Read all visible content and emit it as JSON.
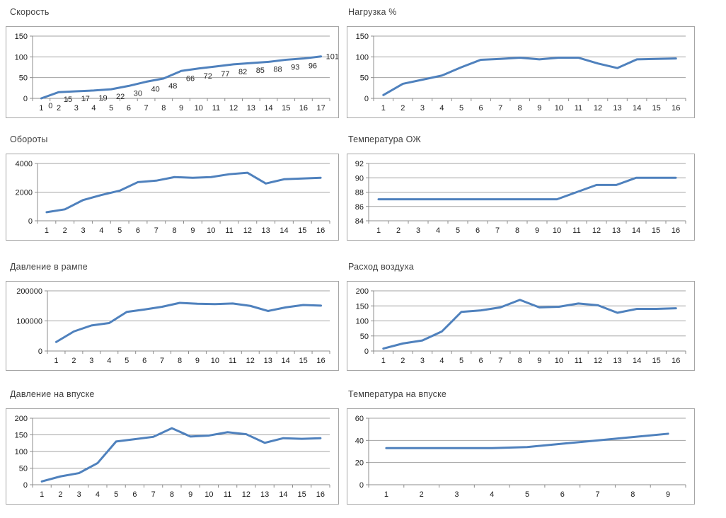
{
  "colors": {
    "line": "#4F81BD",
    "gridline": "#A3A3A3",
    "axis": "#8C8C8C",
    "box_border": "#A6A6A6",
    "title_text": "#3F3F3F",
    "tick_text": "#1A1A1A",
    "background": "#FFFFFF"
  },
  "chart_data": [
    {
      "type": "line",
      "title": "Скорость",
      "x": [
        1,
        2,
        3,
        4,
        5,
        6,
        7,
        8,
        9,
        10,
        11,
        12,
        13,
        14,
        15,
        16,
        17
      ],
      "values": [
        0,
        15,
        17,
        19,
        22,
        30,
        40,
        48,
        66,
        72,
        77,
        82,
        85,
        88,
        93,
        96,
        101
      ],
      "data_labels": true,
      "ylim": [
        0,
        150
      ],
      "yticks": [
        0,
        50,
        100,
        150
      ],
      "grid": true,
      "legend": "none"
    },
    {
      "type": "line",
      "title": "Нагрузка %",
      "x": [
        1,
        2,
        3,
        4,
        5,
        6,
        7,
        8,
        9,
        10,
        11,
        12,
        13,
        14,
        15,
        16
      ],
      "values": [
        8,
        35,
        45,
        55,
        75,
        93,
        95,
        98,
        94,
        98,
        98,
        84,
        73,
        94,
        95,
        96
      ],
      "data_labels": false,
      "ylim": [
        0,
        150
      ],
      "yticks": [
        0,
        50,
        100,
        150
      ],
      "grid": true,
      "legend": "none"
    },
    {
      "type": "line",
      "title": "Обороты",
      "x": [
        1,
        2,
        3,
        4,
        5,
        6,
        7,
        8,
        9,
        10,
        11,
        12,
        13,
        14,
        15,
        16
      ],
      "values": [
        600,
        800,
        1450,
        1800,
        2100,
        2700,
        2800,
        3050,
        3000,
        3050,
        3250,
        3350,
        2600,
        2900,
        2950,
        3000
      ],
      "data_labels": false,
      "ylim": [
        0,
        4000
      ],
      "yticks": [
        0,
        2000,
        4000
      ],
      "grid": true,
      "legend": "none"
    },
    {
      "type": "line",
      "title": "Температура ОЖ",
      "x": [
        1,
        2,
        3,
        4,
        5,
        6,
        7,
        8,
        9,
        10,
        11,
        12,
        13,
        14,
        15,
        16
      ],
      "values": [
        87,
        87,
        87,
        87,
        87,
        87,
        87,
        87,
        87,
        87,
        88,
        89,
        89,
        90,
        90,
        90
      ],
      "data_labels": false,
      "ylim": [
        84,
        92
      ],
      "yticks": [
        84,
        86,
        88,
        90,
        92
      ],
      "grid": true,
      "legend": "none"
    },
    {
      "type": "line",
      "title": "Давление в рампе",
      "x": [
        1,
        2,
        3,
        4,
        5,
        6,
        7,
        8,
        9,
        10,
        11,
        12,
        13,
        14,
        15,
        16
      ],
      "values": [
        30000,
        65000,
        85000,
        93000,
        130000,
        138000,
        147000,
        160000,
        157000,
        156000,
        158000,
        150000,
        133000,
        145000,
        153000,
        151000
      ],
      "data_labels": false,
      "ylim": [
        0,
        200000
      ],
      "yticks": [
        0,
        100000,
        200000
      ],
      "grid": true,
      "legend": "none"
    },
    {
      "type": "line",
      "title": "Расход воздуха",
      "x": [
        1,
        2,
        3,
        4,
        5,
        6,
        7,
        8,
        9,
        10,
        11,
        12,
        13,
        14,
        15,
        16
      ],
      "values": [
        8,
        25,
        35,
        65,
        130,
        135,
        145,
        170,
        145,
        147,
        158,
        152,
        127,
        140,
        140,
        142
      ],
      "data_labels": false,
      "ylim": [
        0,
        200
      ],
      "yticks": [
        0,
        50,
        100,
        150,
        200
      ],
      "grid": true,
      "legend": "none"
    },
    {
      "type": "line",
      "title": "Давление на впуске",
      "x": [
        1,
        2,
        3,
        4,
        5,
        6,
        7,
        8,
        9,
        10,
        11,
        12,
        13,
        14,
        15,
        16
      ],
      "values": [
        10,
        25,
        35,
        65,
        130,
        137,
        144,
        170,
        145,
        148,
        158,
        152,
        126,
        140,
        138,
        140
      ],
      "data_labels": false,
      "ylim": [
        0,
        200
      ],
      "yticks": [
        0,
        50,
        100,
        150,
        200
      ],
      "grid": true,
      "legend": "none"
    },
    {
      "type": "line",
      "title": "Температура на впуске",
      "x": [
        1,
        2,
        3,
        4,
        5,
        6,
        7,
        8,
        9
      ],
      "values": [
        33,
        33,
        33,
        33,
        34,
        37,
        40,
        43,
        46
      ],
      "data_labels": false,
      "ylim": [
        0,
        60
      ],
      "yticks": [
        0,
        20,
        40,
        60
      ],
      "grid": true,
      "legend": "none"
    }
  ]
}
